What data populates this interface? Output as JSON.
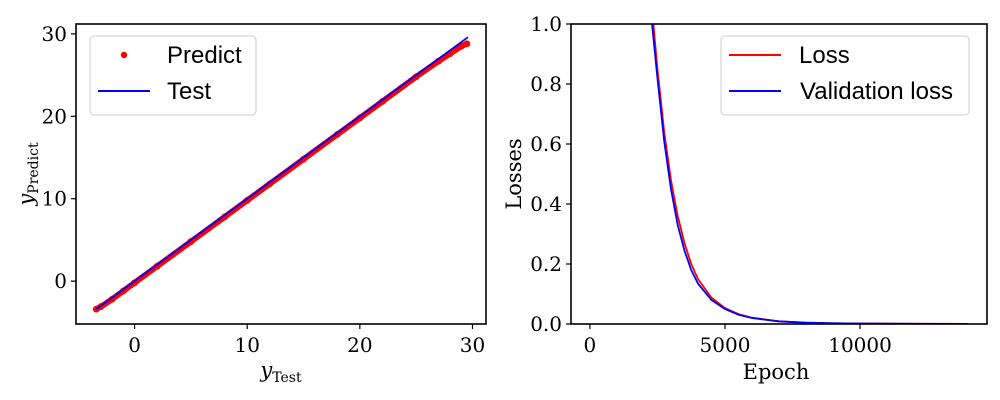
{
  "chart_data": [
    {
      "type": "scatter",
      "xlabel": "y",
      "xlabel_sub": "Test",
      "ylabel": "y",
      "ylabel_sub": "Predict",
      "xlim": [
        -5.2,
        31.2
      ],
      "ylim": [
        -5.2,
        31.2
      ],
      "xticks": [
        0,
        10,
        20,
        30
      ],
      "yticks": [
        0,
        10,
        20,
        30
      ],
      "grid": false,
      "legend": "top-left",
      "series": [
        {
          "name": "Predict",
          "kind": "points",
          "color": "#ff0000",
          "x": [
            -3.4,
            -3.0,
            -2.0,
            -1.0,
            0.0,
            2.0,
            5.0,
            8.0,
            10.0,
            12.0,
            15.0,
            18.0,
            20.0,
            22.0,
            25.0,
            27.0,
            28.0,
            29.0,
            29.5
          ],
          "y": [
            -3.4,
            -3.1,
            -2.2,
            -1.2,
            -0.2,
            1.8,
            4.8,
            7.8,
            9.8,
            11.8,
            14.8,
            17.8,
            19.8,
            21.8,
            24.8,
            26.7,
            27.6,
            28.5,
            28.8
          ]
        },
        {
          "name": "Test",
          "kind": "line",
          "color": "#0000ff",
          "x": [
            -3.4,
            29.6
          ],
          "y": [
            -3.4,
            29.6
          ]
        }
      ]
    },
    {
      "type": "line",
      "xlabel": "Epoch",
      "ylabel": "Losses",
      "xlim": [
        -700,
        14700
      ],
      "ylim": [
        0.0,
        1.0
      ],
      "xticks": [
        0,
        5000,
        10000
      ],
      "yticks": [
        "0.0",
        "0.2",
        "0.4",
        "0.6",
        "0.8",
        "1.0"
      ],
      "grid": false,
      "legend": "top-right",
      "series": [
        {
          "name": "Loss",
          "color": "#ff0000",
          "x": [
            2350,
            2500,
            2750,
            3000,
            3250,
            3500,
            3750,
            4000,
            4500,
            5000,
            5500,
            6000,
            7000,
            8000,
            9000,
            10000,
            12000,
            14000
          ],
          "y": [
            1.0,
            0.85,
            0.64,
            0.48,
            0.36,
            0.27,
            0.2,
            0.15,
            0.088,
            0.053,
            0.033,
            0.021,
            0.009,
            0.0045,
            0.0025,
            0.0015,
            0.0008,
            0.0005
          ]
        },
        {
          "name": "Validation loss",
          "color": "#0000ff",
          "x": [
            2300,
            2500,
            2750,
            3000,
            3250,
            3500,
            3750,
            4000,
            4500,
            5000,
            5500,
            6000,
            7000,
            8000,
            9000,
            10000,
            12000,
            14000
          ],
          "y": [
            1.0,
            0.82,
            0.61,
            0.45,
            0.33,
            0.245,
            0.18,
            0.135,
            0.08,
            0.05,
            0.031,
            0.02,
            0.0085,
            0.0043,
            0.0024,
            0.0014,
            0.0007,
            0.0004
          ]
        }
      ]
    }
  ]
}
